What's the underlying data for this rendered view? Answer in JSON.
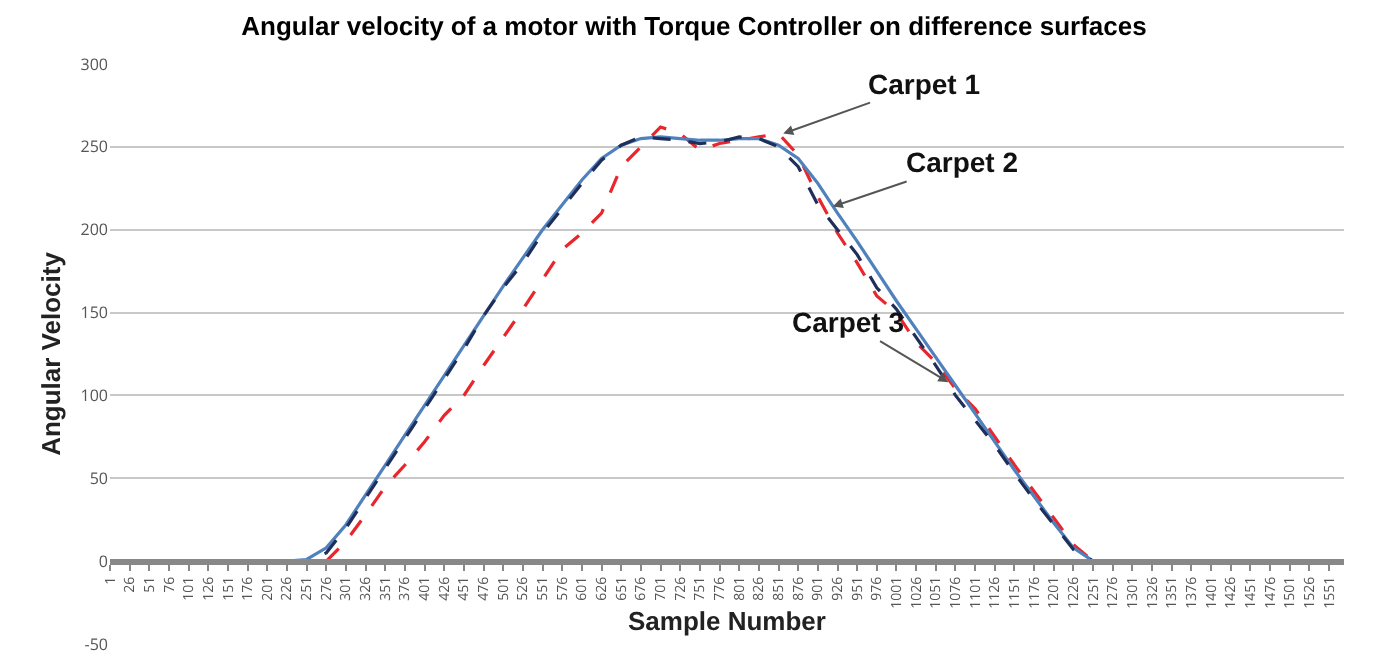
{
  "chart_data": {
    "type": "line",
    "title": "Angular velocity of a motor with Torque Controller on difference surfaces",
    "xlabel": "Sample Number",
    "ylabel": "Angular Velocity",
    "xlim": [
      1,
      1570
    ],
    "xticks": [
      1,
      26,
      51,
      76,
      101,
      126,
      151,
      176,
      201,
      226,
      251,
      276,
      301,
      326,
      351,
      376,
      401,
      426,
      451,
      476,
      501,
      526,
      551,
      576,
      601,
      626,
      651,
      676,
      701,
      726,
      751,
      776,
      801,
      826,
      851,
      876,
      901,
      926,
      951,
      976,
      1001,
      1026,
      1051,
      1076,
      1101,
      1126,
      1151,
      1176,
      1201,
      1226,
      1251,
      1276,
      1301,
      1326,
      1351,
      1376,
      1401,
      1426,
      1451,
      1476,
      1501,
      1526,
      1551
    ],
    "ylim": [
      -50,
      300
    ],
    "yticks": [
      -50,
      0,
      50,
      100,
      150,
      200,
      250,
      300
    ],
    "grid": "y",
    "marker": "none",
    "annotations": [
      {
        "text": "Carpet 1",
        "x": 857,
        "y": 258
      },
      {
        "text": "Carpet 2",
        "x": 920,
        "y": 214
      },
      {
        "text": "Carpet 3",
        "x": 1067,
        "y": 108
      }
    ],
    "series": [
      {
        "color": "#e8262b",
        "line_style": "dashed",
        "x": [
          1,
          276,
          301,
          326,
          351,
          376,
          401,
          426,
          451,
          476,
          501,
          526,
          551,
          576,
          601,
          626,
          651,
          676,
          701,
          726,
          751,
          776,
          801,
          826,
          851,
          876,
          901,
          926,
          951,
          976,
          1001,
          1026,
          1051,
          1076,
          1101,
          1126,
          1151,
          1176,
          1201,
          1226,
          1251,
          1570
        ],
        "values": [
          0,
          0,
          12,
          28,
          45,
          58,
          72,
          88,
          100,
          118,
          135,
          152,
          170,
          188,
          198,
          210,
          238,
          250,
          262,
          258,
          248,
          252,
          254,
          256,
          258,
          245,
          220,
          198,
          180,
          160,
          150,
          132,
          120,
          104,
          92,
          75,
          58,
          42,
          26,
          10,
          0,
          0
        ]
      },
      {
        "color": "#4f81bd",
        "line_style": "solid",
        "x": [
          1,
          226,
          251,
          276,
          301,
          326,
          351,
          376,
          401,
          426,
          451,
          476,
          501,
          526,
          551,
          576,
          601,
          626,
          651,
          676,
          701,
          726,
          751,
          776,
          801,
          826,
          851,
          876,
          901,
          926,
          951,
          976,
          1001,
          1026,
          1051,
          1076,
          1101,
          1126,
          1151,
          1176,
          1201,
          1226,
          1251,
          1570
        ],
        "values": [
          0,
          0,
          1,
          8,
          22,
          40,
          58,
          76,
          94,
          112,
          130,
          148,
          166,
          183,
          200,
          215,
          230,
          243,
          251,
          255,
          256,
          255,
          254,
          254,
          255,
          255,
          251,
          243,
          228,
          210,
          193,
          175,
          157,
          140,
          123,
          106,
          89,
          72,
          55,
          39,
          23,
          8,
          0,
          0
        ]
      },
      {
        "color": "#1f2f5a",
        "line_style": "dashed",
        "x": [
          1,
          251,
          276,
          301,
          326,
          351,
          376,
          401,
          426,
          451,
          476,
          501,
          526,
          551,
          576,
          601,
          626,
          651,
          676,
          701,
          726,
          751,
          776,
          801,
          826,
          851,
          876,
          901,
          926,
          951,
          976,
          1001,
          1026,
          1051,
          1076,
          1101,
          1126,
          1151,
          1176,
          1201,
          1226,
          1251,
          1570
        ],
        "values": [
          0,
          0,
          5,
          20,
          38,
          56,
          74,
          92,
          110,
          128,
          148,
          165,
          180,
          198,
          213,
          228,
          242,
          251,
          256,
          255,
          254,
          252,
          253,
          256,
          255,
          250,
          238,
          215,
          200,
          185,
          165,
          152,
          135,
          118,
          100,
          85,
          70,
          53,
          37,
          22,
          7,
          0,
          0
        ]
      }
    ]
  }
}
